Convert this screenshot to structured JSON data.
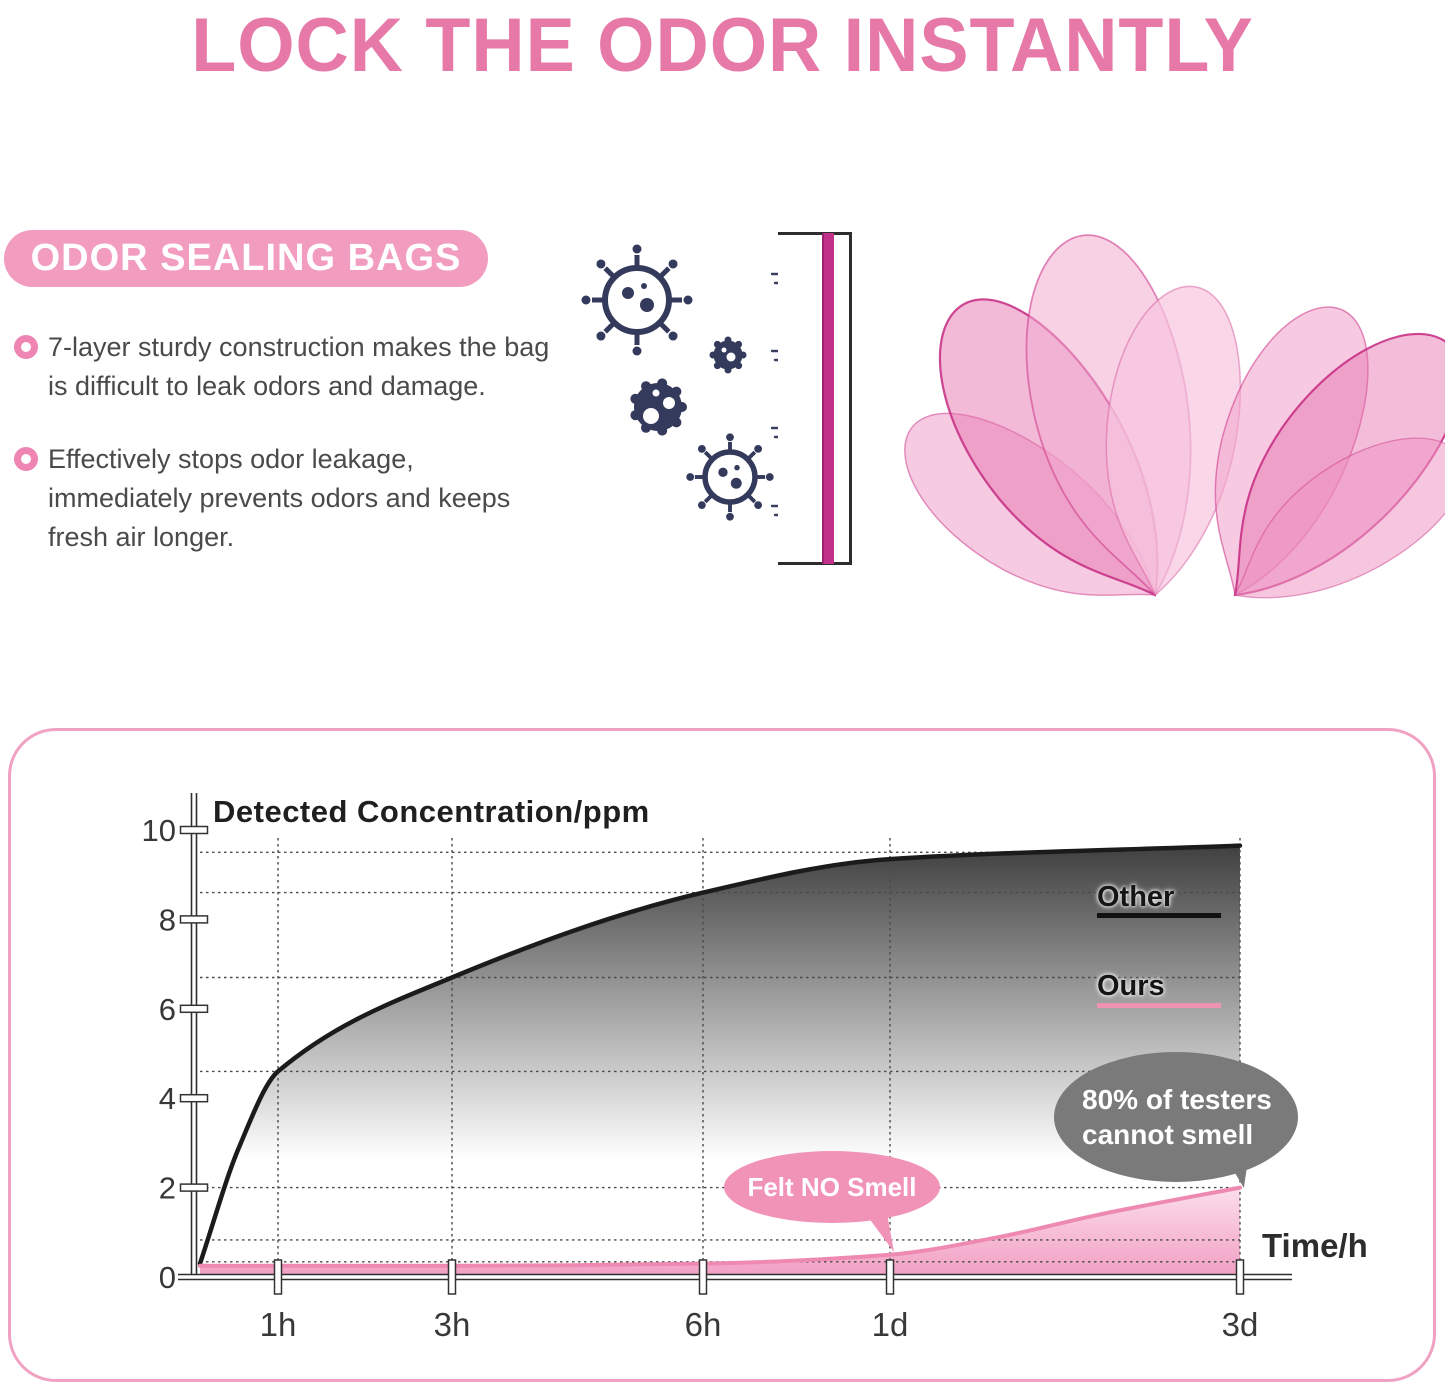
{
  "header": {
    "title": "LOCK THE ODOR INSTANTLY",
    "accent_color": "#e679a8"
  },
  "features": {
    "badge": "ODOR SEALING BAGS",
    "items": [
      "7-layer sturdy construction makes the bag is difficult to leak odors and damage.",
      "Effectively stops odor leakage, immediately prevents odors and keeps fresh air longer."
    ]
  },
  "illustration": {
    "left_icons": "odor-germ-particles",
    "barrier": "odor-sealing-film",
    "right_icons": "seven-layer-bag-films"
  },
  "chart_data": {
    "type": "area",
    "title": "Detected Concentration/ppm",
    "xlabel": "Time/h",
    "x_ticks": [
      "1h",
      "3h",
      "6h",
      "1d",
      "3d"
    ],
    "y_ticks": [
      "0",
      "2",
      "4",
      "6",
      "8",
      "10"
    ],
    "ylim": [
      0,
      10
    ],
    "grid": true,
    "grid_values_y": [
      9.5,
      8.6,
      6.7,
      4.6,
      2.0,
      0.83,
      0.34
    ],
    "legend_position": "right",
    "series": [
      {
        "name": "Other",
        "color": "#1b1b1b",
        "points": [
          [
            "start",
            0.3
          ],
          [
            "h05",
            2.9
          ],
          [
            "h1",
            4.6
          ],
          [
            "h3",
            6.7
          ],
          [
            "h6",
            8.6
          ],
          [
            "d1",
            9.35
          ],
          [
            "d3",
            9.65
          ]
        ]
      },
      {
        "name": "Ours",
        "color": "#ee8ab1",
        "points": [
          [
            "start",
            0.25
          ],
          [
            "h3",
            0.25
          ],
          [
            "h6",
            0.3
          ],
          [
            "d1",
            0.5
          ],
          [
            "d15",
            0.9
          ],
          [
            "d2",
            1.4
          ],
          [
            "d3",
            2.0
          ]
        ]
      }
    ],
    "annotations": [
      {
        "text": "Felt NO Smell",
        "color": "#f193b7"
      },
      {
        "lines": [
          "80% of testers",
          "cannot smell"
        ],
        "color": "#7a7a7a"
      }
    ]
  }
}
